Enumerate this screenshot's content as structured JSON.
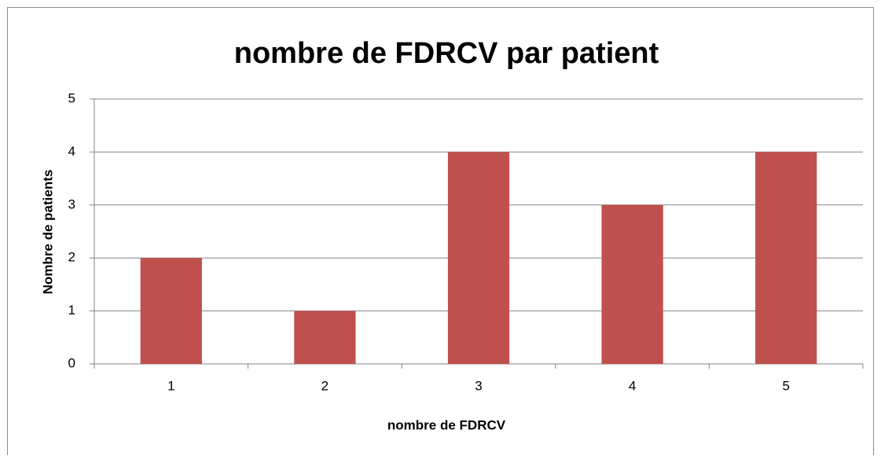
{
  "chart_data": {
    "type": "bar",
    "title": "nombre de FDRCV par patient",
    "x_label": "nombre de FDRCV",
    "y_label": "Nombre de patients",
    "categories": [
      "1",
      "2",
      "3",
      "4",
      "5"
    ],
    "values": [
      2,
      1,
      4,
      3,
      4
    ],
    "color": "#c0504d",
    "ylim": [
      0,
      5
    ],
    "yticks": [
      0,
      1,
      2,
      3,
      4,
      5
    ],
    "grid": true
  }
}
